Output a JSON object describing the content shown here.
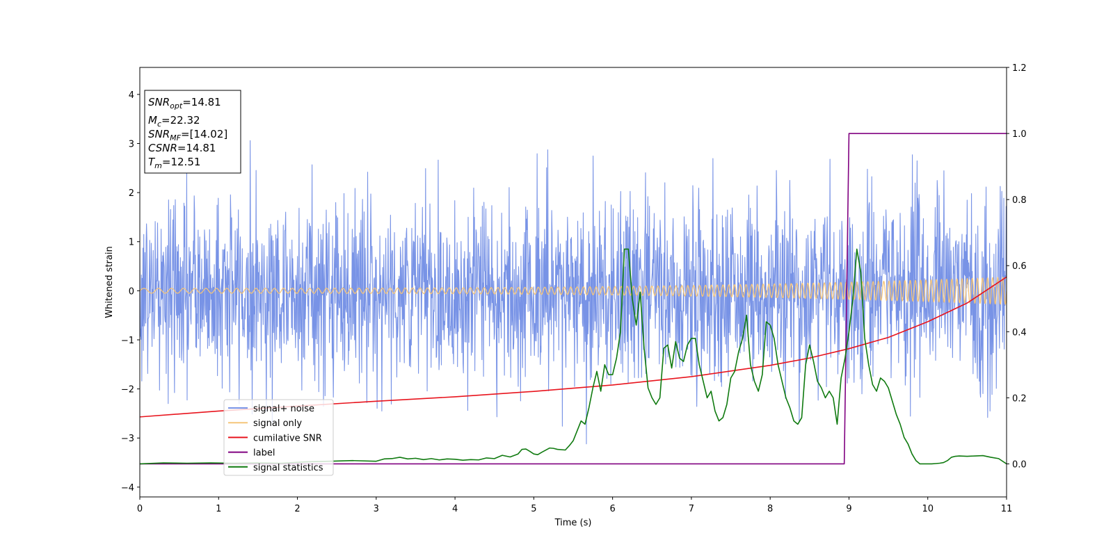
{
  "chart_data": {
    "type": "line",
    "xlabel": "Time (s)",
    "ylabel": "Whitened strain",
    "xlim": [
      0,
      11
    ],
    "ylim": [
      -4.2,
      4.55
    ],
    "y2lim": [
      -0.1,
      1.2
    ],
    "x_ticks": [
      "0",
      "1",
      "2",
      "3",
      "4",
      "5",
      "6",
      "7",
      "8",
      "9",
      "10",
      "11"
    ],
    "y_ticks": [
      "−4",
      "−3",
      "−2",
      "−1",
      "0",
      "1",
      "2",
      "3",
      "4"
    ],
    "y2_ticks": [
      "0.0",
      "0.2",
      "0.4",
      "0.6",
      "0.8",
      "1.0",
      "1.2"
    ],
    "grid": false,
    "legend_position": "lower-left",
    "info_box": {
      "position": "top-left",
      "lines": [
        {
          "sym": "SNR",
          "sub": "opt",
          "value": "=14.81"
        },
        {
          "sym": "M",
          "sub": "c",
          "value": "=22.32"
        },
        {
          "sym": "SNR",
          "sub": "MF",
          "value": "=[14.02]"
        },
        {
          "sym": "CSNR",
          "sub": "",
          "value": "=14.81"
        },
        {
          "sym": "T",
          "sub": "m",
          "value": "=12.51"
        }
      ]
    },
    "series": [
      {
        "name": "signal+ noise",
        "color": "#7893e6",
        "axis": "left",
        "kind": "noise",
        "x_range": [
          0,
          11
        ],
        "n_samples": 2200,
        "std": 0.95,
        "observed_range": [
          -3.72,
          3.6
        ]
      },
      {
        "name": "signal only",
        "color": "#f5c57a",
        "axis": "left",
        "kind": "chirp",
        "x_range": [
          0,
          11
        ],
        "amplitude_start": 0.05,
        "amplitude_end": 0.28,
        "cycles": 130
      },
      {
        "name": "cumilative SNR",
        "color": "#e8141d",
        "axis": "left",
        "x": [
          0,
          1,
          2,
          3,
          4,
          5,
          6,
          7,
          8,
          8.5,
          9,
          9.5,
          10,
          10.5,
          11
        ],
        "y": [
          -2.57,
          -2.45,
          -2.35,
          -2.25,
          -2.16,
          -2.05,
          -1.92,
          -1.75,
          -1.52,
          -1.37,
          -1.18,
          -0.95,
          -0.63,
          -0.25,
          0.28
        ]
      },
      {
        "name": "label",
        "color": "#800080",
        "axis": "right",
        "x": [
          0,
          8.94,
          9.0,
          11
        ],
        "y": [
          0,
          0,
          1,
          1
        ]
      },
      {
        "name": "signal statistics",
        "color": "#0f7a0f",
        "axis": "right",
        "x": [
          0,
          0.3,
          0.6,
          0.9,
          1.2,
          1.5,
          1.8,
          2.1,
          2.4,
          2.7,
          3.0,
          3.1,
          3.2,
          3.3,
          3.4,
          3.5,
          3.6,
          3.7,
          3.8,
          3.9,
          4.0,
          4.1,
          4.2,
          4.3,
          4.4,
          4.5,
          4.6,
          4.7,
          4.8,
          4.85,
          4.9,
          4.95,
          5.0,
          5.05,
          5.1,
          5.2,
          5.25,
          5.3,
          5.4,
          5.45,
          5.5,
          5.55,
          5.6,
          5.65,
          5.7,
          5.75,
          5.8,
          5.85,
          5.9,
          5.95,
          6.0,
          6.05,
          6.1,
          6.15,
          6.2,
          6.25,
          6.3,
          6.35,
          6.4,
          6.45,
          6.5,
          6.55,
          6.6,
          6.65,
          6.7,
          6.75,
          6.8,
          6.85,
          6.9,
          6.95,
          7.0,
          7.05,
          7.1,
          7.15,
          7.2,
          7.25,
          7.3,
          7.35,
          7.4,
          7.45,
          7.5,
          7.55,
          7.6,
          7.65,
          7.7,
          7.75,
          7.8,
          7.85,
          7.9,
          7.95,
          8.0,
          8.05,
          8.1,
          8.15,
          8.2,
          8.25,
          8.3,
          8.35,
          8.4,
          8.45,
          8.5,
          8.55,
          8.6,
          8.65,
          8.7,
          8.75,
          8.8,
          8.85,
          8.9,
          8.95,
          9.0,
          9.05,
          9.1,
          9.15,
          9.2,
          9.25,
          9.3,
          9.35,
          9.4,
          9.45,
          9.5,
          9.55,
          9.6,
          9.65,
          9.7,
          9.75,
          9.8,
          9.85,
          9.9,
          9.95,
          10.0,
          10.05,
          10.1,
          10.15,
          10.2,
          10.25,
          10.3,
          10.35,
          10.4,
          10.5,
          10.6,
          10.7,
          10.8,
          10.9,
          11.0
        ],
        "y": [
          0.0,
          0.003,
          0.002,
          0.003,
          0.002,
          0.003,
          0.002,
          0.006,
          0.008,
          0.01,
          0.008,
          0.015,
          0.016,
          0.02,
          0.015,
          0.017,
          0.013,
          0.016,
          0.012,
          0.015,
          0.014,
          0.011,
          0.013,
          0.012,
          0.018,
          0.016,
          0.026,
          0.021,
          0.03,
          0.044,
          0.045,
          0.038,
          0.03,
          0.028,
          0.035,
          0.048,
          0.047,
          0.044,
          0.042,
          0.055,
          0.07,
          0.1,
          0.13,
          0.12,
          0.17,
          0.23,
          0.28,
          0.22,
          0.3,
          0.27,
          0.27,
          0.32,
          0.4,
          0.65,
          0.65,
          0.5,
          0.42,
          0.52,
          0.35,
          0.23,
          0.2,
          0.18,
          0.2,
          0.35,
          0.36,
          0.29,
          0.37,
          0.32,
          0.31,
          0.36,
          0.38,
          0.38,
          0.3,
          0.25,
          0.2,
          0.22,
          0.16,
          0.13,
          0.14,
          0.18,
          0.26,
          0.28,
          0.34,
          0.38,
          0.45,
          0.3,
          0.25,
          0.22,
          0.27,
          0.43,
          0.42,
          0.38,
          0.3,
          0.25,
          0.2,
          0.17,
          0.13,
          0.12,
          0.14,
          0.3,
          0.36,
          0.31,
          0.25,
          0.23,
          0.2,
          0.22,
          0.2,
          0.12,
          0.26,
          0.32,
          0.4,
          0.5,
          0.65,
          0.58,
          0.38,
          0.3,
          0.24,
          0.22,
          0.26,
          0.25,
          0.23,
          0.19,
          0.15,
          0.12,
          0.08,
          0.06,
          0.03,
          0.01,
          0.0,
          0.0,
          0.0,
          0.0,
          0.001,
          0.002,
          0.004,
          0.01,
          0.02,
          0.023,
          0.024,
          0.023,
          0.024,
          0.025,
          0.02,
          0.016,
          0.0
        ]
      }
    ]
  }
}
